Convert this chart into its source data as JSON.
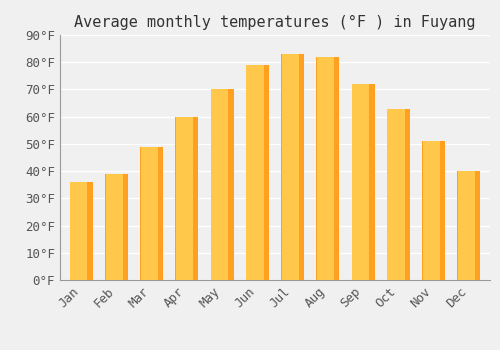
{
  "title": "Average monthly temperatures (°F ) in Fuyang",
  "months": [
    "Jan",
    "Feb",
    "Mar",
    "Apr",
    "May",
    "Jun",
    "Jul",
    "Aug",
    "Sep",
    "Oct",
    "Nov",
    "Dec"
  ],
  "values": [
    36,
    39,
    49,
    60,
    70,
    79,
    83,
    82,
    72,
    63,
    51,
    40
  ],
  "bar_color_light": "#FFC84A",
  "bar_color_dark": "#FFA020",
  "ylim": [
    0,
    90
  ],
  "yticks": [
    0,
    10,
    20,
    30,
    40,
    50,
    60,
    70,
    80,
    90
  ],
  "background_color": "#f0f0f0",
  "grid_color": "#ffffff",
  "title_fontsize": 11,
  "tick_fontsize": 9,
  "font_family": "monospace",
  "bar_width": 0.65
}
